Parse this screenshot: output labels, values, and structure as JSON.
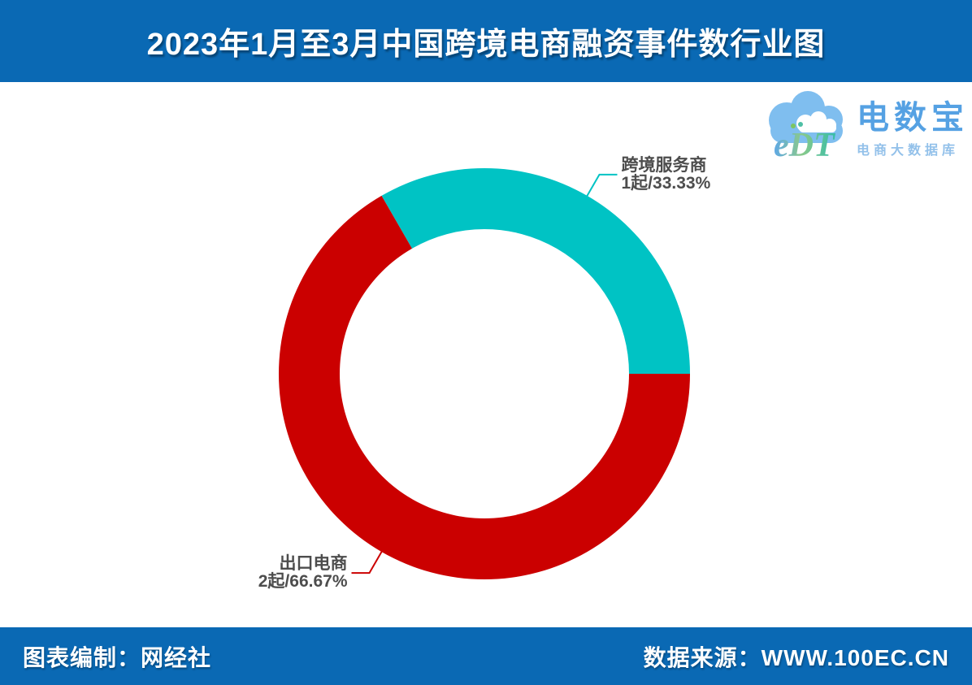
{
  "header": {
    "title": "2023年1月至3月中国跨境电商融资事件数行业图",
    "background_color": "#0A69B4"
  },
  "logo": {
    "icon": "cloud-icon",
    "monogram": "eDT",
    "brand": "电数宝",
    "subtitle": "电商大数据库"
  },
  "footer": {
    "left": "图表编制：网经社",
    "right": "数据来源：WWW.100EC.CN",
    "background_color": "#0A69B4"
  },
  "chart_data": {
    "type": "pie",
    "subtype": "donut",
    "title": "2023年1月至3月中国跨境电商融资事件数行业图",
    "unit": "起",
    "total_events": 3,
    "slices": [
      {
        "name": "跨境服务商",
        "value": 1,
        "percent": "33.33%",
        "color": "#00C3C4"
      },
      {
        "name": "出口电商",
        "value": 2,
        "percent": "66.67%",
        "color": "#CB0000"
      }
    ],
    "start_angle_deg": 0,
    "direction": "counterclockwise",
    "inner_radius_ratio": 0.7,
    "legend": "none",
    "label_format": "{name}\n{value}起/{percent}",
    "label_color": "#4D4D4D"
  }
}
